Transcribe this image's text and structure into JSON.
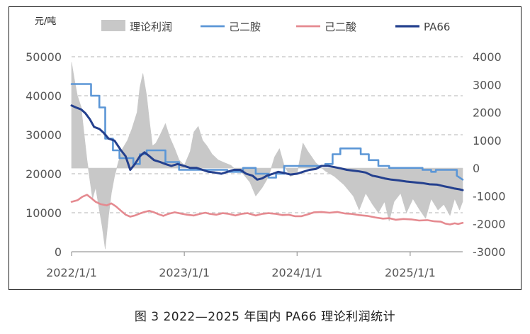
{
  "caption": "图 3  2022—2025 年国内 PA66 理论利润统计",
  "chart_data": {
    "type": "line",
    "title": "",
    "y_unit_label": "元/吨",
    "xlabel": "",
    "ylabel": "",
    "x_tick_labels": [
      "2022/1/1",
      "2023/1/1",
      "2024/1/1",
      "2025/1/1"
    ],
    "x_range": [
      "2022/1/1",
      "2025/6/20"
    ],
    "y_left": {
      "range": [
        0,
        50000
      ],
      "ticks": [
        0,
        10000,
        20000,
        30000,
        40000,
        50000
      ]
    },
    "y_right": {
      "range": [
        -3000,
        4000
      ],
      "ticks": [
        -3000,
        -2000,
        -1000,
        0,
        1000,
        2000,
        3000,
        4000
      ]
    },
    "grid": "dashed horizontal",
    "legend_position": "top",
    "series": [
      {
        "name": "理论利润",
        "type": "area",
        "axis": "right",
        "color": "#c8c8c8",
        "points": [
          [
            "2022/1/1",
            3800
          ],
          [
            "2022/1/10",
            3200
          ],
          [
            "2022/1/20",
            2600
          ],
          [
            "2022/2/1",
            2200
          ],
          [
            "2022/2/10",
            1300
          ],
          [
            "2022/2/20",
            300
          ],
          [
            "2022/3/1",
            -400
          ],
          [
            "2022/3/10",
            -1100
          ],
          [
            "2022/3/20",
            -700
          ],
          [
            "2022/4/1",
            -1500
          ],
          [
            "2022/4/10",
            -2100
          ],
          [
            "2022/4/20",
            -2900
          ],
          [
            "2022/5/1",
            -1700
          ],
          [
            "2022/5/10",
            -900
          ],
          [
            "2022/5/20",
            -300
          ],
          [
            "2022/6/1",
            200
          ],
          [
            "2022/6/15",
            700
          ],
          [
            "2022/7/1",
            1000
          ],
          [
            "2022/7/15",
            1400
          ],
          [
            "2022/8/1",
            2000
          ],
          [
            "2022/8/10",
            2900
          ],
          [
            "2022/8/20",
            3400
          ],
          [
            "2022/9/1",
            2600
          ],
          [
            "2022/9/10",
            1700
          ],
          [
            "2022/9/20",
            800
          ],
          [
            "2022/10/1",
            900
          ],
          [
            "2022/10/15",
            1200
          ],
          [
            "2022/11/1",
            1600
          ],
          [
            "2022/11/15",
            1100
          ],
          [
            "2022/12/1",
            700
          ],
          [
            "2022/12/15",
            300
          ],
          [
            "2023/1/1",
            100
          ],
          [
            "2023/1/20",
            600
          ],
          [
            "2023/2/1",
            1300
          ],
          [
            "2023/2/15",
            1500
          ],
          [
            "2023/3/1",
            1000
          ],
          [
            "2023/3/15",
            800
          ],
          [
            "2023/4/1",
            500
          ],
          [
            "2023/4/20",
            300
          ],
          [
            "2023/5/10",
            200
          ],
          [
            "2023/6/1",
            100
          ],
          [
            "2023/6/20",
            -100
          ],
          [
            "2023/7/10",
            -200
          ],
          [
            "2023/8/1",
            -500
          ],
          [
            "2023/8/20",
            -1000
          ],
          [
            "2023/9/10",
            -700
          ],
          [
            "2023/10/1",
            -300
          ],
          [
            "2023/10/20",
            400
          ],
          [
            "2023/11/5",
            700
          ],
          [
            "2023/11/20",
            100
          ],
          [
            "2023/12/10",
            -300
          ],
          [
            "2024/1/1",
            -200
          ],
          [
            "2024/1/20",
            900
          ],
          [
            "2024/2/5",
            600
          ],
          [
            "2024/3/1",
            200
          ],
          [
            "2024/4/1",
            -100
          ],
          [
            "2024/5/1",
            -300
          ],
          [
            "2024/6/1",
            -600
          ],
          [
            "2024/7/1",
            -1000
          ],
          [
            "2024/7/20",
            -1500
          ],
          [
            "2024/8/10",
            -900
          ],
          [
            "2024/9/1",
            -1300
          ],
          [
            "2024/9/20",
            -1600
          ],
          [
            "2024/10/10",
            -1200
          ],
          [
            "2024/10/25",
            -1900
          ],
          [
            "2024/11/10",
            -1200
          ],
          [
            "2024/12/1",
            -900
          ],
          [
            "2024/12/20",
            -1600
          ],
          [
            "2025/1/10",
            -1100
          ],
          [
            "2025/2/1",
            -1500
          ],
          [
            "2025/2/20",
            -1800
          ],
          [
            "2025/3/10",
            -1100
          ],
          [
            "2025/4/1",
            -1500
          ],
          [
            "2025/4/20",
            -1300
          ],
          [
            "2025/5/10",
            -1700
          ],
          [
            "2025/5/25",
            -1100
          ],
          [
            "2025/6/10",
            -1500
          ],
          [
            "2025/6/20",
            -1200
          ]
        ]
      },
      {
        "name": "己二胺",
        "type": "step",
        "axis": "left",
        "color": "#5b96d6",
        "points": [
          [
            "2022/1/1",
            43000
          ],
          [
            "2022/3/5",
            43000
          ],
          [
            "2022/3/5",
            40000
          ],
          [
            "2022/4/1",
            40000
          ],
          [
            "2022/4/1",
            37000
          ],
          [
            "2022/4/20",
            37000
          ],
          [
            "2022/4/20",
            29000
          ],
          [
            "2022/5/15",
            29000
          ],
          [
            "2022/5/15",
            26000
          ],
          [
            "2022/6/5",
            26000
          ],
          [
            "2022/6/5",
            24000
          ],
          [
            "2022/7/20",
            24000
          ],
          [
            "2022/7/20",
            22500
          ],
          [
            "2022/8/10",
            22500
          ],
          [
            "2022/8/10",
            25000
          ],
          [
            "2022/9/1",
            25000
          ],
          [
            "2022/9/1",
            26000
          ],
          [
            "2022/11/1",
            26000
          ],
          [
            "2022/11/1",
            23000
          ],
          [
            "2022/12/15",
            23000
          ],
          [
            "2022/12/15",
            21000
          ],
          [
            "2023/5/20",
            21000
          ],
          [
            "2023/5/20",
            20500
          ],
          [
            "2023/7/10",
            20500
          ],
          [
            "2023/7/10",
            21500
          ],
          [
            "2023/8/20",
            21500
          ],
          [
            "2023/8/20",
            20000
          ],
          [
            "2023/10/1",
            20000
          ],
          [
            "2023/10/1",
            19000
          ],
          [
            "2023/10/25",
            19000
          ],
          [
            "2023/10/25",
            20000
          ],
          [
            "2023/11/20",
            20000
          ],
          [
            "2023/11/20",
            22000
          ],
          [
            "2024/4/1",
            22000
          ],
          [
            "2024/4/1",
            22500
          ],
          [
            "2024/4/25",
            22500
          ],
          [
            "2024/4/25",
            25000
          ],
          [
            "2024/5/20",
            25000
          ],
          [
            "2024/5/20",
            26500
          ],
          [
            "2024/7/25",
            26500
          ],
          [
            "2024/7/25",
            25000
          ],
          [
            "2024/8/20",
            25000
          ],
          [
            "2024/8/20",
            23500
          ],
          [
            "2024/9/20",
            23500
          ],
          [
            "2024/9/20",
            22000
          ],
          [
            "2024/10/25",
            22000
          ],
          [
            "2024/10/25",
            21500
          ],
          [
            "2025/2/10",
            21500
          ],
          [
            "2025/2/10",
            21000
          ],
          [
            "2025/3/10",
            21000
          ],
          [
            "2025/3/10",
            20500
          ],
          [
            "2025/3/25",
            20500
          ],
          [
            "2025/3/25",
            21000
          ],
          [
            "2025/6/1",
            21000
          ],
          [
            "2025/6/1",
            19500
          ],
          [
            "2025/6/20",
            18500
          ]
        ]
      },
      {
        "name": "己二酸",
        "type": "line",
        "axis": "left",
        "color": "#e58a90",
        "points": [
          [
            "2022/1/1",
            12800
          ],
          [
            "2022/1/20",
            13200
          ],
          [
            "2022/2/5",
            14100
          ],
          [
            "2022/2/20",
            14600
          ],
          [
            "2022/3/5",
            13800
          ],
          [
            "2022/3/20",
            12800
          ],
          [
            "2022/4/5",
            12200
          ],
          [
            "2022/4/25",
            11900
          ],
          [
            "2022/5/10",
            12400
          ],
          [
            "2022/5/25",
            11600
          ],
          [
            "2022/6/10",
            10500
          ],
          [
            "2022/6/25",
            9500
          ],
          [
            "2022/7/10",
            9000
          ],
          [
            "2022/7/25",
            9300
          ],
          [
            "2022/8/10",
            9800
          ],
          [
            "2022/8/25",
            10200
          ],
          [
            "2022/9/10",
            10500
          ],
          [
            "2022/9/25",
            10100
          ],
          [
            "2022/10/10",
            9600
          ],
          [
            "2022/10/25",
            9200
          ],
          [
            "2022/11/10",
            9700
          ],
          [
            "2022/12/1",
            10100
          ],
          [
            "2022/12/20",
            9800
          ],
          [
            "2023/1/10",
            9500
          ],
          [
            "2023/2/1",
            9300
          ],
          [
            "2023/2/20",
            9700
          ],
          [
            "2023/3/10",
            10000
          ],
          [
            "2023/3/25",
            9700
          ],
          [
            "2023/4/15",
            9500
          ],
          [
            "2023/5/5",
            9900
          ],
          [
            "2023/5/25",
            9700
          ],
          [
            "2023/6/15",
            9300
          ],
          [
            "2023/7/5",
            9700
          ],
          [
            "2023/7/25",
            9900
          ],
          [
            "2023/8/20",
            9300
          ],
          [
            "2023/9/10",
            9700
          ],
          [
            "2023/10/1",
            9900
          ],
          [
            "2023/10/25",
            9700
          ],
          [
            "2023/11/15",
            9400
          ],
          [
            "2023/12/5",
            9500
          ],
          [
            "2023/12/25",
            9100
          ],
          [
            "2024/1/15",
            9100
          ],
          [
            "2024/2/5",
            9600
          ],
          [
            "2024/2/25",
            10100
          ],
          [
            "2024/3/20",
            10200
          ],
          [
            "2024/4/15",
            10000
          ],
          [
            "2024/5/10",
            10200
          ],
          [
            "2024/6/5",
            9800
          ],
          [
            "2024/6/25",
            9700
          ],
          [
            "2024/7/20",
            9400
          ],
          [
            "2024/8/15",
            9200
          ],
          [
            "2024/9/10",
            8800
          ],
          [
            "2024/10/5",
            8500
          ],
          [
            "2024/10/25",
            8600
          ],
          [
            "2024/11/15",
            8200
          ],
          [
            "2024/12/10",
            8400
          ],
          [
            "2025/1/5",
            8300
          ],
          [
            "2025/1/30",
            8000
          ],
          [
            "2025/2/25",
            8100
          ],
          [
            "2025/3/20",
            7800
          ],
          [
            "2025/4/10",
            7700
          ],
          [
            "2025/4/25",
            7200
          ],
          [
            "2025/5/10",
            7000
          ],
          [
            "2025/5/25",
            7300
          ],
          [
            "2025/6/5",
            7100
          ],
          [
            "2025/6/20",
            7400
          ]
        ]
      },
      {
        "name": "PA66",
        "type": "line",
        "axis": "left",
        "color": "#24408e",
        "points": [
          [
            "2022/1/1",
            37500
          ],
          [
            "2022/1/15",
            37000
          ],
          [
            "2022/2/1",
            36500
          ],
          [
            "2022/2/15",
            35500
          ],
          [
            "2022/3/1",
            34000
          ],
          [
            "2022/3/15",
            32000
          ],
          [
            "2022/4/1",
            31500
          ],
          [
            "2022/4/15",
            30500
          ],
          [
            "2022/5/1",
            29000
          ],
          [
            "2022/5/20",
            28500
          ],
          [
            "2022/6/10",
            26000
          ],
          [
            "2022/6/25",
            24500
          ],
          [
            "2022/7/10",
            21000
          ],
          [
            "2022/7/25",
            22500
          ],
          [
            "2022/8/10",
            24500
          ],
          [
            "2022/8/25",
            25500
          ],
          [
            "2022/9/10",
            24500
          ],
          [
            "2022/9/25",
            23500
          ],
          [
            "2022/10/15",
            23000
          ],
          [
            "2022/11/1",
            22500
          ],
          [
            "2022/11/20",
            22000
          ],
          [
            "2022/12/10",
            22500
          ],
          [
            "2023/1/1",
            22000
          ],
          [
            "2023/1/20",
            21500
          ],
          [
            "2023/2/10",
            21500
          ],
          [
            "2023/3/1",
            21000
          ],
          [
            "2023/3/20",
            20500
          ],
          [
            "2023/4/10",
            20300
          ],
          [
            "2023/5/1",
            20000
          ],
          [
            "2023/5/20",
            20500
          ],
          [
            "2023/6/10",
            21000
          ],
          [
            "2023/7/1",
            21000
          ],
          [
            "2023/7/20",
            20000
          ],
          [
            "2023/8/10",
            19500
          ],
          [
            "2023/8/25",
            18500
          ],
          [
            "2023/9/10",
            18800
          ],
          [
            "2023/9/25",
            19500
          ],
          [
            "2023/10/15",
            20000
          ],
          [
            "2023/11/1",
            20500
          ],
          [
            "2023/11/20",
            20200
          ],
          [
            "2023/12/10",
            19800
          ],
          [
            "2024/1/1",
            20000
          ],
          [
            "2024/1/20",
            20500
          ],
          [
            "2024/2/10",
            21000
          ],
          [
            "2024/3/1",
            21200
          ],
          [
            "2024/3/20",
            22000
          ],
          [
            "2024/4/10",
            22000
          ],
          [
            "2024/5/1",
            21700
          ],
          [
            "2024/5/20",
            21400
          ],
          [
            "2024/6/10",
            21000
          ],
          [
            "2024/7/1",
            20800
          ],
          [
            "2024/7/20",
            20600
          ],
          [
            "2024/8/10",
            20300
          ],
          [
            "2024/9/1",
            19500
          ],
          [
            "2024/9/20",
            19200
          ],
          [
            "2024/10/10",
            18800
          ],
          [
            "2024/11/1",
            18500
          ],
          [
            "2024/11/25",
            18300
          ],
          [
            "2024/12/20",
            18000
          ],
          [
            "2025/1/15",
            17800
          ],
          [
            "2025/2/10",
            17600
          ],
          [
            "2025/3/5",
            17300
          ],
          [
            "2025/3/30",
            17200
          ],
          [
            "2025/4/20",
            16800
          ],
          [
            "2025/5/10",
            16500
          ],
          [
            "2025/5/25",
            16200
          ],
          [
            "2025/6/10",
            16000
          ],
          [
            "2025/6/20",
            15800
          ]
        ]
      }
    ]
  }
}
